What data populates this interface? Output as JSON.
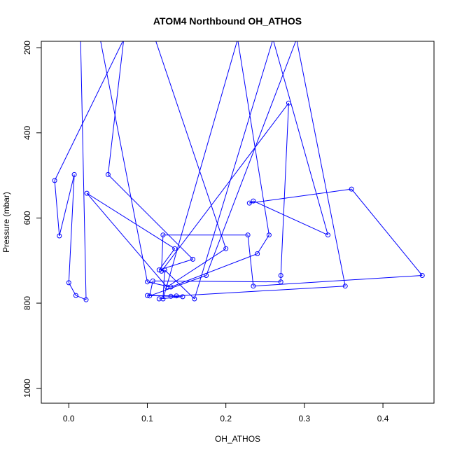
{
  "chart_data": {
    "type": "line",
    "title": "ATOM4 Northbound OH_ATHOS",
    "xlabel": "OH_ATHOS",
    "ylabel": "Pressure (mbar)",
    "xlim": [
      -0.035,
      0.465
    ],
    "ylim": [
      1035,
      185
    ],
    "y_reversed": true,
    "x_ticks": [
      0.0,
      0.1,
      0.2,
      0.3,
      0.4
    ],
    "x_tick_labels": [
      "0.0",
      "0.1",
      "0.2",
      "0.3",
      "0.4"
    ],
    "y_ticks": [
      200,
      400,
      600,
      800,
      1000
    ],
    "y_tick_labels": [
      "200",
      "400",
      "600",
      "800",
      "1000"
    ],
    "grid": false,
    "legend": "none",
    "color": "#0000ff",
    "x": [
      0.015,
      0.022,
      0.009,
      0.0,
      0.007,
      -0.012,
      -0.018,
      0.07,
      0.05,
      0.158,
      0.115,
      0.135,
      0.023,
      0.125,
      0.2,
      0.11,
      0.23,
      0.04,
      0.1,
      0.13,
      0.24,
      0.255,
      0.215,
      0.12,
      0.122,
      0.16,
      0.26,
      0.33,
      0.235,
      0.23,
      0.36,
      0.45,
      0.235,
      0.228,
      0.12,
      0.118,
      0.28,
      0.27,
      0.27,
      0.107,
      0.103,
      0.175,
      0.29,
      0.352,
      0.137,
      0.1,
      0.13,
      0.145,
      0.115
    ],
    "y": [
      180,
      792,
      782,
      752,
      498,
      642,
      512,
      180,
      498,
      697,
      722,
      672,
      542,
      762,
      672,
      180,
      180,
      180,
      750,
      762,
      684,
      640,
      180,
      790,
      722,
      790,
      180,
      640,
      560,
      565,
      532,
      735,
      760,
      640,
      640,
      725,
      330,
      735,
      750,
      748,
      783,
      735,
      180,
      760,
      783,
      782,
      784,
      785,
      790
    ]
  }
}
